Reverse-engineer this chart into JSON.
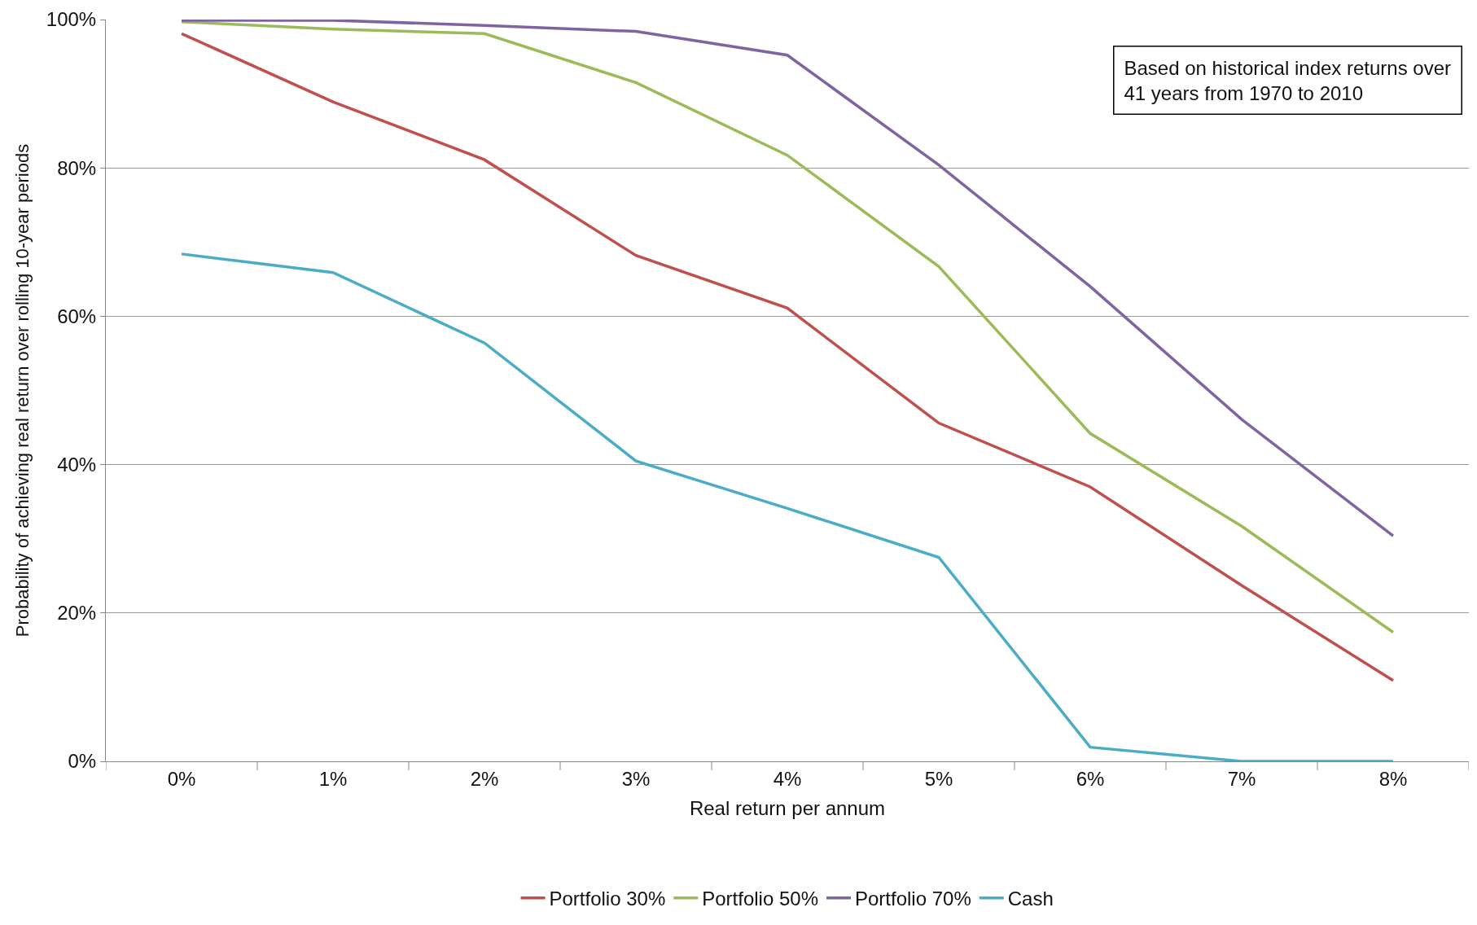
{
  "chart_data": {
    "type": "line",
    "xlabel": "Real return per annum",
    "ylabel": "Probability of achieving real return over rolling 10-year periods",
    "categories": [
      "0%",
      "1%",
      "2%",
      "3%",
      "4%",
      "5%",
      "6%",
      "7%",
      "8%"
    ],
    "series": [
      {
        "name": "Portfolio 30%",
        "color": "#c0504d",
        "values": [
          98.1,
          88.9,
          81.1,
          68.2,
          61.1,
          45.6,
          37.0,
          23.7,
          10.9
        ]
      },
      {
        "name": "Portfolio 50%",
        "color": "#9bbb59",
        "values": [
          99.7,
          98.7,
          98.1,
          91.5,
          81.7,
          66.7,
          44.2,
          31.7,
          17.4
        ]
      },
      {
        "name": "Portfolio 70%",
        "color": "#8064a2",
        "values": [
          99.9,
          99.9,
          99.2,
          98.4,
          95.2,
          80.4,
          64.0,
          46.1,
          30.4
        ]
      },
      {
        "name": "Cash",
        "color": "#4bacc6",
        "values": [
          68.4,
          65.9,
          56.4,
          40.5,
          34.1,
          27.5,
          1.9,
          0,
          0
        ]
      }
    ],
    "ylim": [
      0,
      100
    ],
    "yticks": [
      {
        "value": 0,
        "label": "0%"
      },
      {
        "value": 20,
        "label": "20%"
      },
      {
        "value": 40,
        "label": "40%"
      },
      {
        "value": 60,
        "label": "60%"
      },
      {
        "value": 80,
        "label": "80%"
      },
      {
        "value": 100,
        "label": "100%"
      }
    ],
    "grid": "y",
    "legend": "bottom",
    "marker": "none",
    "line_style": "solid",
    "annotations": [
      "Based on historical index returns over\n41 years from 1970 to 2010"
    ]
  }
}
